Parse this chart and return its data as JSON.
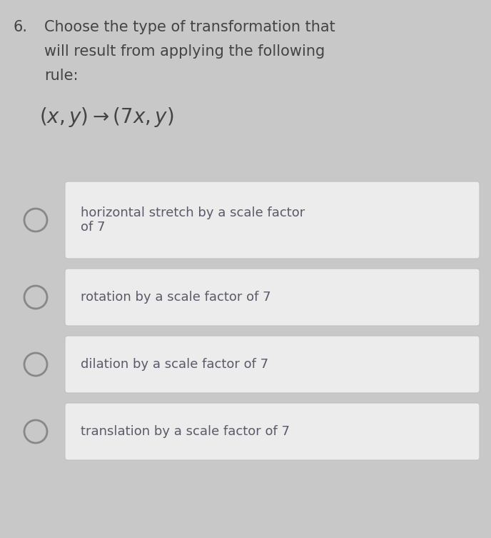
{
  "background_color": "#c8c8c8",
  "question_number": "6.",
  "question_text_line1": "Choose the type of transformation that",
  "question_text_line2": "will result from applying the following",
  "question_text_line3": "rule:",
  "options": [
    [
      "horizontal stretch by a scale factor",
      "of 7"
    ],
    [
      "rotation by a scale factor of 7"
    ],
    [
      "dilation by a scale factor of 7"
    ],
    [
      "translation by a scale factor of 7"
    ]
  ],
  "option_box_color": "#ececec",
  "option_box_edge_color": "#c0c0c0",
  "text_color": "#5a5a6a",
  "circle_edge_color": "#888888",
  "question_color": "#444444",
  "fig_width": 6.88,
  "fig_height": 7.53,
  "dpi": 100
}
